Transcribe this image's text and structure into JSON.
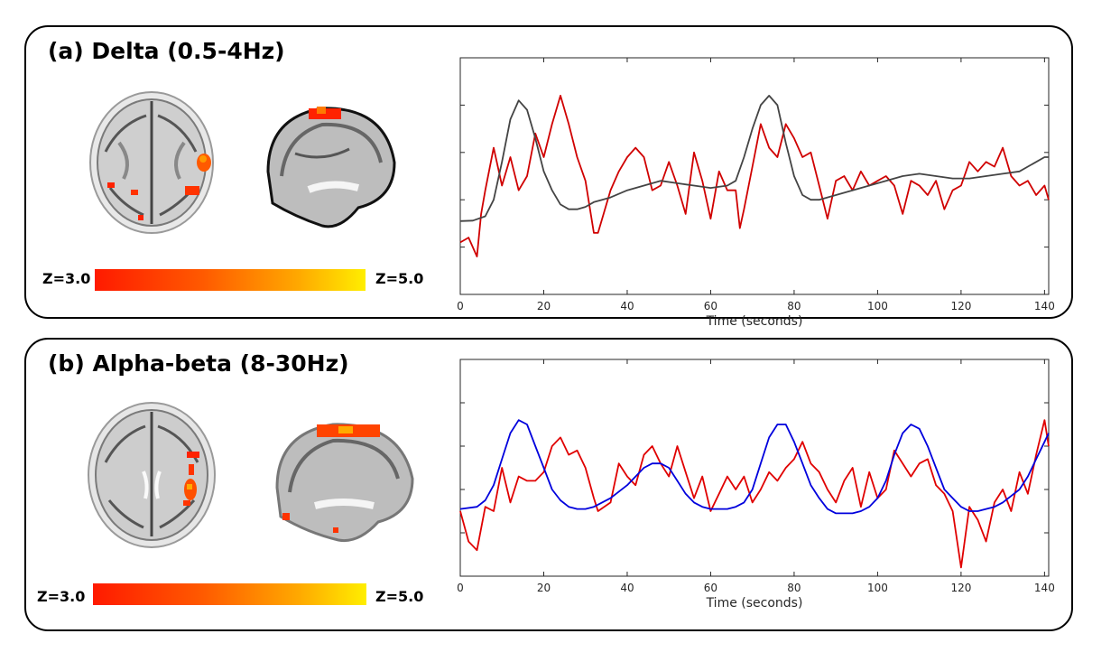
{
  "panels": [
    {
      "id": "a",
      "title": "(a) Delta (0.5-4Hz)",
      "colorbar": {
        "min_label": "Z=3.0",
        "max_label": "Z=5.0"
      },
      "chart_data": {
        "type": "line",
        "xlabel": "Time (seconds)",
        "ylabel": "",
        "xlim": [
          0,
          141
        ],
        "ylim": [
          0,
          5
        ],
        "x_ticks": [
          "0",
          "20",
          "40",
          "60",
          "80",
          "100",
          "120",
          "140"
        ],
        "grid": false,
        "series": [
          {
            "color": "#d00000",
            "x": [
              0,
              2,
              4,
              5,
              6,
              8,
              10,
              12,
              14,
              16,
              18,
              20,
              22,
              24,
              26,
              28,
              30,
              32,
              33,
              36,
              38,
              40,
              42,
              44,
              46,
              48,
              50,
              52,
              54,
              56,
              58,
              60,
              62,
              64,
              66,
              67,
              68,
              70,
              72,
              74,
              76,
              78,
              80,
              82,
              84,
              86,
              88,
              90,
              92,
              94,
              96,
              98,
              100,
              102,
              104,
              106,
              108,
              110,
              112,
              114,
              116,
              118,
              120,
              122,
              124,
              126,
              128,
              130,
              132,
              134,
              136,
              138,
              140,
              141
            ],
            "y": [
              1.1,
              1.2,
              0.8,
              1.7,
              2.2,
              3.1,
              2.3,
              2.9,
              2.2,
              2.5,
              3.4,
              2.9,
              3.6,
              4.2,
              3.6,
              2.9,
              2.4,
              1.3,
              1.3,
              2.2,
              2.6,
              2.9,
              3.1,
              2.9,
              2.2,
              2.3,
              2.8,
              2.3,
              1.7,
              3.0,
              2.4,
              1.6,
              2.6,
              2.2,
              2.2,
              1.4,
              1.8,
              2.7,
              3.6,
              3.1,
              2.9,
              3.6,
              3.3,
              2.9,
              3.0,
              2.3,
              1.6,
              2.4,
              2.5,
              2.2,
              2.6,
              2.3,
              2.4,
              2.5,
              2.3,
              1.7,
              2.4,
              2.3,
              2.1,
              2.4,
              1.8,
              2.2,
              2.3,
              2.8,
              2.6,
              2.8,
              2.7,
              3.1,
              2.5,
              2.3,
              2.4,
              2.1,
              2.3,
              2.0
            ]
          },
          {
            "color": "#444444",
            "x": [
              0,
              3,
              6,
              8,
              10,
              12,
              14,
              16,
              18,
              20,
              22,
              24,
              26,
              28,
              30,
              32,
              34,
              36,
              40,
              44,
              48,
              52,
              56,
              60,
              64,
              66,
              68,
              70,
              72,
              74,
              76,
              78,
              80,
              82,
              84,
              86,
              88,
              90,
              94,
              98,
              102,
              106,
              110,
              114,
              118,
              122,
              126,
              130,
              134,
              136,
              138,
              140,
              141
            ],
            "y": [
              1.55,
              1.56,
              1.65,
              2.0,
              2.8,
              3.7,
              4.1,
              3.9,
              3.3,
              2.6,
              2.2,
              1.9,
              1.8,
              1.8,
              1.85,
              1.95,
              2.0,
              2.05,
              2.2,
              2.3,
              2.4,
              2.35,
              2.3,
              2.25,
              2.3,
              2.4,
              2.9,
              3.5,
              4.0,
              4.2,
              4.0,
              3.2,
              2.5,
              2.1,
              2.0,
              2.0,
              2.05,
              2.1,
              2.2,
              2.3,
              2.4,
              2.5,
              2.55,
              2.5,
              2.45,
              2.45,
              2.5,
              2.55,
              2.6,
              2.7,
              2.8,
              2.9,
              2.9
            ]
          }
        ]
      }
    },
    {
      "id": "b",
      "title": "(b) Alpha-beta (8-30Hz)",
      "colorbar": {
        "min_label": "Z=3.0",
        "max_label": "Z=5.0"
      },
      "chart_data": {
        "type": "line",
        "xlabel": "Time (seconds)",
        "ylabel": "",
        "xlim": [
          0,
          141
        ],
        "ylim": [
          0,
          5
        ],
        "x_ticks": [
          "0",
          "20",
          "40",
          "60",
          "80",
          "100",
          "120",
          "140"
        ],
        "grid": false,
        "series": [
          {
            "color": "#e00000",
            "x": [
              0,
              2,
              4,
              6,
              8,
              10,
              12,
              14,
              16,
              18,
              20,
              22,
              24,
              26,
              28,
              30,
              32,
              33,
              36,
              38,
              40,
              42,
              44,
              46,
              48,
              50,
              52,
              54,
              56,
              58,
              60,
              62,
              64,
              66,
              68,
              70,
              72,
              74,
              76,
              78,
              80,
              82,
              84,
              86,
              88,
              90,
              92,
              94,
              96,
              98,
              100,
              102,
              104,
              106,
              108,
              110,
              112,
              114,
              116,
              118,
              120,
              122,
              124,
              126,
              128,
              130,
              132,
              134,
              136,
              138,
              140,
              141
            ],
            "y": [
              1.5,
              0.8,
              0.6,
              1.6,
              1.5,
              2.5,
              1.7,
              2.3,
              2.2,
              2.2,
              2.4,
              3.0,
              3.2,
              2.8,
              2.9,
              2.5,
              1.8,
              1.5,
              1.7,
              2.6,
              2.3,
              2.1,
              2.8,
              3.0,
              2.6,
              2.3,
              3.0,
              2.4,
              1.8,
              2.3,
              1.5,
              1.9,
              2.3,
              2.0,
              2.3,
              1.7,
              2.0,
              2.4,
              2.2,
              2.5,
              2.7,
              3.1,
              2.6,
              2.4,
              2.0,
              1.7,
              2.2,
              2.5,
              1.6,
              2.4,
              1.8,
              2.0,
              2.9,
              2.6,
              2.3,
              2.6,
              2.7,
              2.1,
              1.9,
              1.5,
              0.2,
              1.6,
              1.3,
              0.8,
              1.7,
              2.0,
              1.5,
              2.4,
              1.9,
              2.8,
              3.6,
              3.0
            ]
          },
          {
            "color": "#0000dd",
            "x": [
              0,
              4,
              6,
              8,
              10,
              12,
              14,
              16,
              18,
              20,
              22,
              24,
              26,
              28,
              30,
              32,
              36,
              40,
              44,
              46,
              48,
              50,
              52,
              54,
              56,
              58,
              60,
              62,
              64,
              66,
              68,
              70,
              72,
              74,
              76,
              78,
              80,
              82,
              84,
              86,
              88,
              90,
              92,
              94,
              96,
              98,
              100,
              102,
              104,
              106,
              108,
              110,
              112,
              114,
              116,
              118,
              120,
              122,
              124,
              126,
              128,
              130,
              132,
              134,
              136,
              138,
              140,
              141
            ],
            "y": [
              1.55,
              1.6,
              1.75,
              2.1,
              2.7,
              3.3,
              3.6,
              3.5,
              3.0,
              2.5,
              2.0,
              1.75,
              1.6,
              1.55,
              1.55,
              1.6,
              1.8,
              2.1,
              2.5,
              2.6,
              2.6,
              2.5,
              2.2,
              1.9,
              1.7,
              1.6,
              1.55,
              1.55,
              1.55,
              1.6,
              1.7,
              2.0,
              2.6,
              3.2,
              3.5,
              3.5,
              3.1,
              2.6,
              2.1,
              1.8,
              1.55,
              1.45,
              1.45,
              1.45,
              1.5,
              1.6,
              1.8,
              2.2,
              2.8,
              3.3,
              3.5,
              3.4,
              3.0,
              2.5,
              2.0,
              1.8,
              1.6,
              1.5,
              1.5,
              1.55,
              1.6,
              1.7,
              1.85,
              2.0,
              2.3,
              2.7,
              3.1,
              3.3
            ]
          }
        ]
      }
    }
  ]
}
